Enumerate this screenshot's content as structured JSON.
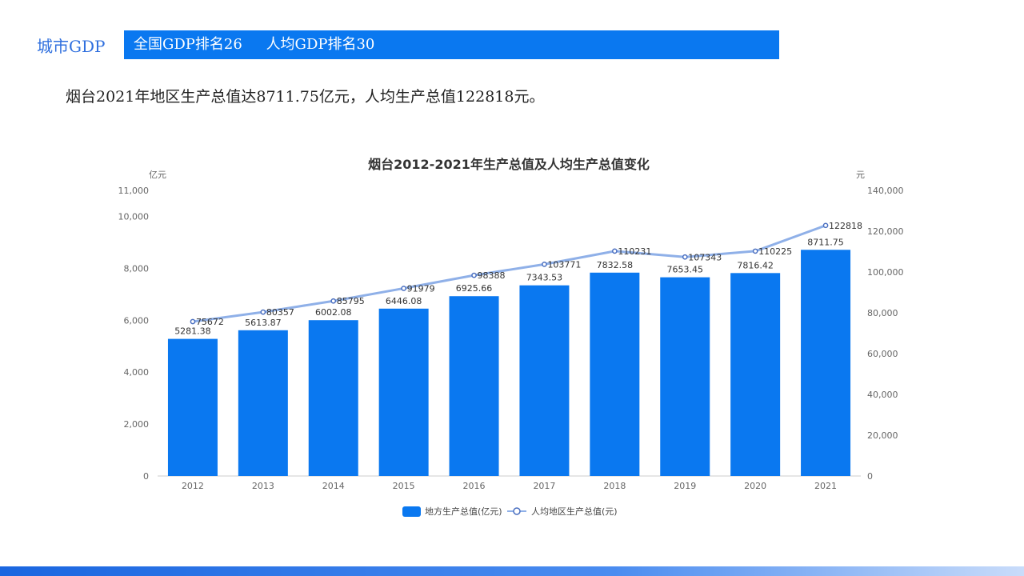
{
  "header": {
    "section_label": "城市GDP",
    "rank_national": "全国GDP排名26",
    "rank_per_capita": "人均GDP排名30"
  },
  "summary": "烟台2021年地区生产总值达8711.75亿元，人均生产总值122818元。",
  "colors": {
    "accent": "#0a78f0",
    "bar": "#0a78f0",
    "line": "#8fb0e8",
    "marker": "#4a6fc0"
  },
  "chart_data": {
    "type": "bar",
    "title": "烟台2012-2021年生产总值及人均生产总值变化",
    "categories": [
      "2012",
      "2013",
      "2014",
      "2015",
      "2016",
      "2017",
      "2018",
      "2019",
      "2020",
      "2021"
    ],
    "series": [
      {
        "name": "地方生产总值(亿元)",
        "type": "bar",
        "axis": "left",
        "values": [
          5281.38,
          5613.87,
          6002.08,
          6446.08,
          6925.66,
          7343.53,
          7832.58,
          7653.45,
          7816.42,
          8711.75
        ],
        "labels": [
          "5281.38",
          "5613.87",
          "6002.08",
          "6446.08",
          "6925.66",
          "7343.53",
          "7832.58",
          "7653.45",
          "7816.42",
          "8711.75"
        ]
      },
      {
        "name": "人均地区生产总值(元)",
        "type": "line",
        "axis": "right",
        "values": [
          75672,
          80357,
          85795,
          91979,
          98388,
          103771,
          110231,
          107343,
          110225,
          122818
        ],
        "labels": [
          "75672",
          "80357",
          "85795",
          "91979",
          "98388",
          "103771",
          "110231",
          "107343",
          "110225",
          "122818"
        ]
      }
    ],
    "y_left": {
      "unit": "亿元",
      "ylim": [
        0,
        11000
      ],
      "ticks": [
        0,
        2000,
        4000,
        6000,
        8000,
        10000,
        11000
      ],
      "tick_labels": [
        "0",
        "2,000",
        "4,000",
        "6,000",
        "8,000",
        "10,000",
        "11,000"
      ]
    },
    "y_right": {
      "unit": "元",
      "ylim": [
        0,
        140000
      ],
      "ticks": [
        0,
        20000,
        40000,
        60000,
        80000,
        100000,
        120000,
        140000
      ],
      "tick_labels": [
        "0",
        "20,000",
        "40,000",
        "60,000",
        "80,000",
        "100,000",
        "120,000",
        "140,000"
      ]
    },
    "legend_position": "bottom-center"
  }
}
